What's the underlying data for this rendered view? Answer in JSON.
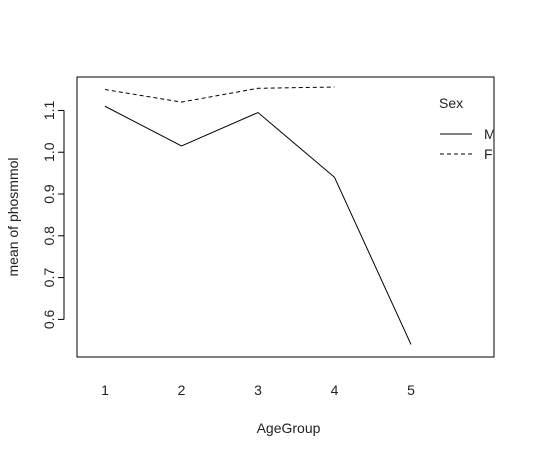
{
  "chart_data": {
    "type": "line",
    "xlabel": "AgeGroup",
    "ylabel": "mean of  phosmmol",
    "categories": [
      "1",
      "2",
      "3",
      "4",
      "5"
    ],
    "ylim": [
      0.51,
      1.18
    ],
    "yticks": [
      0.6,
      0.7,
      0.8,
      0.9,
      1.0,
      1.1
    ],
    "ytick_labels": [
      "0.6",
      "0.7",
      "0.8",
      "0.9",
      "1.0",
      "1.1"
    ],
    "series": [
      {
        "name": "M",
        "linestyle": "solid",
        "values": [
          1.11,
          1.015,
          1.095,
          0.94,
          0.54
        ]
      },
      {
        "name": "F",
        "linestyle": "dashed",
        "values": [
          1.15,
          1.12,
          1.153,
          1.156,
          null
        ]
      }
    ],
    "legend": {
      "title": "Sex",
      "position": "top-right"
    },
    "grid": false,
    "line_color": "#000000"
  }
}
